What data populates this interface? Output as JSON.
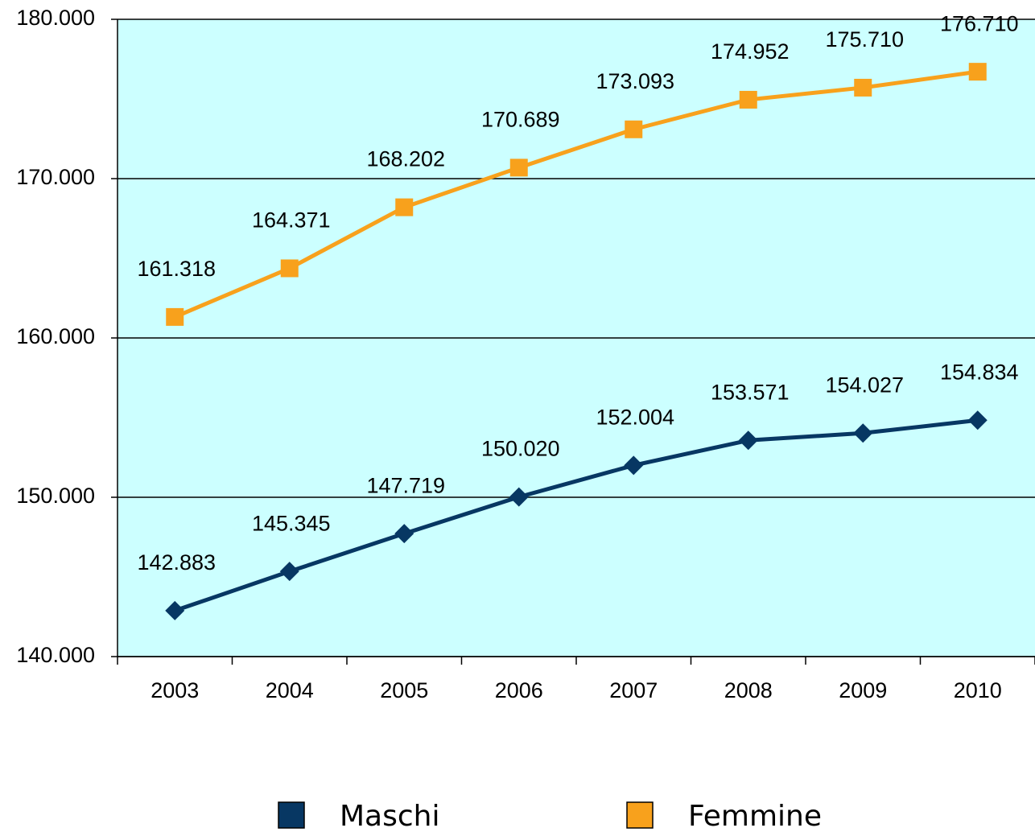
{
  "chart_data": {
    "type": "line",
    "categories": [
      "2003",
      "2004",
      "2005",
      "2006",
      "2007",
      "2008",
      "2009",
      "2010"
    ],
    "series": [
      {
        "name": "Maschi",
        "color": "#073763",
        "marker": "diamond",
        "values": [
          142883,
          145345,
          147719,
          150020,
          152004,
          153571,
          154027,
          154834
        ],
        "value_labels": [
          "142.883",
          "145.345",
          "147.719",
          "150.020",
          "152.004",
          "153.571",
          "154.027",
          "154.834"
        ]
      },
      {
        "name": "Femmine",
        "color": "#f8a11c",
        "marker": "square",
        "values": [
          161318,
          164371,
          168202,
          170689,
          173093,
          174952,
          175710,
          176710
        ],
        "value_labels": [
          "161.318",
          "164.371",
          "168.202",
          "170.689",
          "173.093",
          "174.952",
          "175.710",
          "176.710"
        ]
      }
    ],
    "ylim": [
      140000,
      180000
    ],
    "yticks": [
      {
        "value": 140000,
        "label": "140.000"
      },
      {
        "value": 150000,
        "label": "150.000"
      },
      {
        "value": 160000,
        "label": "160.000"
      },
      {
        "value": 170000,
        "label": "170.000"
      },
      {
        "value": 180000,
        "label": "180.000"
      }
    ],
    "grid": true,
    "background": "#ccffff",
    "legend": "bottom"
  }
}
